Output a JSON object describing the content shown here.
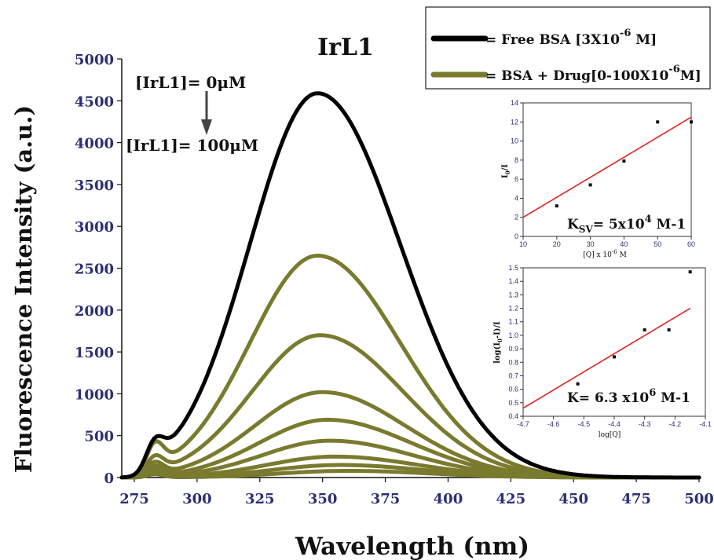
{
  "chart_data": [
    {
      "type": "line",
      "title": "IrL1",
      "xlabel": "Wavelength (nm)",
      "ylabel": "Fluorescence Intensity (a.u.)",
      "xlim": [
        270,
        500
      ],
      "ylim": [
        0,
        5000
      ],
      "xticks": [
        "275",
        "300",
        "325",
        "350",
        "375",
        "400",
        "425",
        "450",
        "475",
        "500"
      ],
      "yticks": [
        "0",
        "500",
        "1000",
        "1500",
        "2000",
        "2500",
        "3000",
        "3500",
        "4000",
        "4500",
        "5000"
      ],
      "annotations": {
        "start": "[IrL1]= 0μM",
        "end": "[IrL1]= 100μM"
      },
      "legend": {
        "position": "top-right",
        "entries": [
          {
            "label": "= Free BSA [3X10",
            "sup": "-6",
            "tail": " M]",
            "color": "#000000"
          },
          {
            "label": "= BSA + Drug[0-100X10",
            "sup": "-6",
            "tail": "M]",
            "color": "#7a7a2e"
          }
        ]
      },
      "series": [
        {
          "name": "Free BSA [3X10-6 M]",
          "color": "#000000",
          "peak_x": 348,
          "peak": 4590,
          "shoulder": 240
        },
        {
          "color": "#7a7a2e",
          "peak_x": 348,
          "peak": 2650,
          "shoulder": 300
        },
        {
          "color": "#7a7a2e",
          "peak_x": 349,
          "peak": 1700,
          "shoulder": 190
        },
        {
          "color": "#7a7a2e",
          "peak_x": 350,
          "peak": 1020,
          "shoulder": 150
        },
        {
          "color": "#7a7a2e",
          "peak_x": 352,
          "peak": 690,
          "shoulder": 120
        },
        {
          "color": "#7a7a2e",
          "peak_x": 353,
          "peak": 440,
          "shoulder": 100
        },
        {
          "color": "#7a7a2e",
          "peak_x": 355,
          "peak": 250,
          "shoulder": 80
        },
        {
          "color": "#7a7a2e",
          "peak_x": 357,
          "peak": 150,
          "shoulder": 60
        },
        {
          "color": "#7a7a2e",
          "peak_x": 360,
          "peak": 80,
          "shoulder": 40
        }
      ]
    },
    {
      "type": "scatter",
      "xlabel": "[Q] x 10-6 M",
      "ylabel": "I0/I",
      "xlim": [
        10,
        60
      ],
      "ylim": [
        0,
        14
      ],
      "xticks": [
        10,
        20,
        30,
        40,
        50,
        60
      ],
      "yticks": [
        0,
        2,
        4,
        6,
        8,
        10,
        12,
        14
      ],
      "annotation": {
        "main": "K",
        "sub": "SV",
        "mid": "= 5x10",
        "sup": "4",
        "tail": " M-1"
      },
      "points": [
        [
          20,
          3.2
        ],
        [
          30,
          5.4
        ],
        [
          40,
          7.9
        ],
        [
          50,
          12.0
        ],
        [
          60,
          12.0
        ]
      ],
      "fit": [
        [
          10,
          2.0
        ],
        [
          60,
          12.5
        ]
      ],
      "fit_color": "#e0231f"
    },
    {
      "type": "scatter",
      "xlabel": "log[Q]",
      "ylabel": "log(I0-I)/I",
      "xlim": [
        -4.7,
        -4.1
      ],
      "ylim": [
        0.4,
        1.5
      ],
      "xticks": [
        "-4.7",
        "-4.6",
        "-4.5",
        "-4.4",
        "-4.3",
        "-4.2",
        "-4.1"
      ],
      "yticks": [
        "0.4",
        "0.5",
        "0.6",
        "0.7",
        "0.8",
        "0.9",
        "1.0",
        "1.1",
        "1.2",
        "1.3",
        "1.4",
        "1.5"
      ],
      "annotation": {
        "main": "K= 6.3 x10",
        "sup": "6",
        "tail": " M-1"
      },
      "points": [
        [
          -4.52,
          0.64
        ],
        [
          -4.4,
          0.84
        ],
        [
          -4.3,
          1.04
        ],
        [
          -4.22,
          1.04
        ],
        [
          -4.15,
          1.47
        ]
      ],
      "fit": [
        [
          -4.7,
          0.46
        ],
        [
          -4.15,
          1.2
        ]
      ],
      "fit_color": "#e0231f"
    }
  ]
}
